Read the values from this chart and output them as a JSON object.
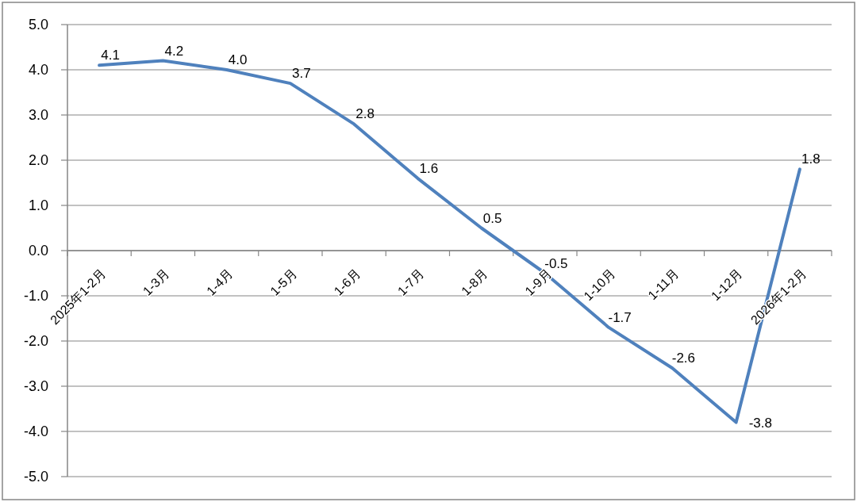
{
  "chart_data": {
    "type": "line",
    "categories": [
      "2025年1-2月",
      "1-3月",
      "1-4月",
      "1-5月",
      "1-6月",
      "1-7月",
      "1-8月",
      "1-9月",
      "1-10月",
      "1-11月",
      "1-12月",
      "2026年1-2月"
    ],
    "series": [
      {
        "color": "#4f81bd",
        "values": [
          4.1,
          4.2,
          4.0,
          3.7,
          2.8,
          1.6,
          0.5,
          -0.5,
          -1.7,
          -2.6,
          -3.8,
          1.8
        ],
        "value_labels": [
          "4.1",
          "4.2",
          "4.0",
          "3.7",
          "2.8",
          "1.6",
          "0.5",
          "-0.5",
          "-1.7",
          "-2.6",
          "-3.8",
          "1.8"
        ]
      }
    ],
    "ylim": [
      -5,
      5
    ],
    "yticks": [
      {
        "value": 5,
        "label": "5.0"
      },
      {
        "value": 4,
        "label": "4.0"
      },
      {
        "value": 3,
        "label": "3.0"
      },
      {
        "value": 2,
        "label": "2.0"
      },
      {
        "value": 1,
        "label": "1.0"
      },
      {
        "value": 0,
        "label": "0.0"
      },
      {
        "value": -1,
        "label": "-1.0"
      },
      {
        "value": -2,
        "label": "-2.0"
      },
      {
        "value": -3,
        "label": "-3.0"
      },
      {
        "value": -4,
        "label": "-4.0"
      },
      {
        "value": -5,
        "label": "-5.0"
      }
    ],
    "grid": "y"
  }
}
